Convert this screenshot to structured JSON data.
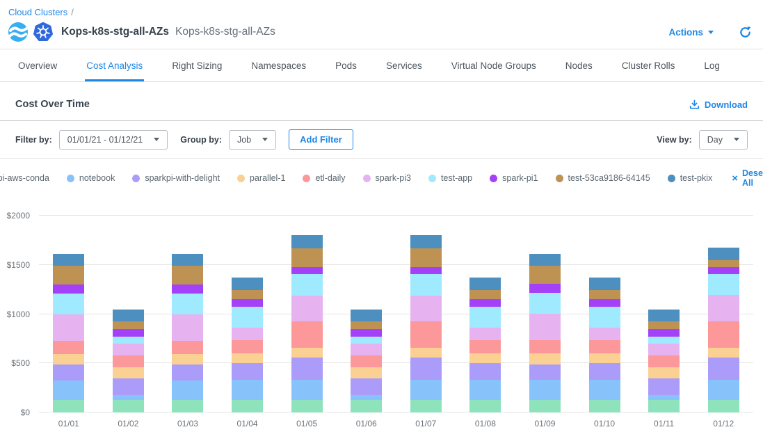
{
  "accent": "#1e87e5",
  "breadcrumb": {
    "link": "Cloud Clusters",
    "separator": "/"
  },
  "header": {
    "title": "Kops-k8s-stg-all-AZs",
    "subtitle": "Kops-k8s-stg-all-AZs",
    "actions_label": "Actions"
  },
  "tabs": {
    "active_index": 1,
    "items": [
      {
        "label": "Overview"
      },
      {
        "label": "Cost Analysis"
      },
      {
        "label": "Right Sizing"
      },
      {
        "label": "Namespaces"
      },
      {
        "label": "Pods"
      },
      {
        "label": "Services"
      },
      {
        "label": "Virtual Node Groups"
      },
      {
        "label": "Nodes"
      },
      {
        "label": "Cluster Rolls"
      },
      {
        "label": "Log"
      }
    ]
  },
  "section": {
    "title": "Cost Over Time",
    "download_label": "Download"
  },
  "filters": {
    "filter_by_label": "Filter by:",
    "date_range": "01/01/21 - 01/12/21",
    "group_by_label": "Group by:",
    "group_by_value": "Job",
    "add_filter_label": "Add Filter",
    "view_by_label": "View by:",
    "view_by_value": "Day"
  },
  "legend": {
    "deselect_all_label": "Deselect All",
    "deselect_icon": "×"
  },
  "chart_data": {
    "type": "bar",
    "stacked": true,
    "grid": true,
    "legend_position": "top",
    "ylabel_prefix": "$",
    "ylim": [
      0,
      2000
    ],
    "yticks": [
      0,
      500,
      1000,
      1500,
      2000
    ],
    "x": [
      "01/01",
      "01/02",
      "01/03",
      "01/04",
      "01/05",
      "01/06",
      "01/07",
      "01/08",
      "01/09",
      "01/10",
      "01/11",
      "01/12"
    ],
    "series": [
      {
        "name": "pi-aws-conda",
        "color": "#8fe3bc",
        "values": [
          125,
          125,
          125,
          130,
          130,
          125,
          130,
          130,
          130,
          130,
          125,
          130
        ]
      },
      {
        "name": "notebook",
        "color": "#87c3fa",
        "values": [
          200,
          55,
          200,
          205,
          200,
          55,
          200,
          205,
          200,
          205,
          55,
          200
        ]
      },
      {
        "name": "sparkpi-with-delight",
        "color": "#ac9cf9",
        "values": [
          160,
          165,
          160,
          165,
          230,
          165,
          230,
          165,
          160,
          165,
          165,
          225
        ]
      },
      {
        "name": "parallel-1",
        "color": "#fad093",
        "values": [
          110,
          115,
          110,
          100,
          100,
          115,
          100,
          100,
          110,
          100,
          115,
          105
        ]
      },
      {
        "name": "etl-daily",
        "color": "#fd989a",
        "values": [
          135,
          120,
          135,
          135,
          265,
          120,
          265,
          135,
          135,
          135,
          120,
          265
        ]
      },
      {
        "name": "spark-pi3",
        "color": "#e7b2f0",
        "values": [
          270,
          120,
          270,
          130,
          265,
          120,
          265,
          130,
          270,
          130,
          120,
          270
        ]
      },
      {
        "name": "test-app",
        "color": "#a0eaff",
        "values": [
          210,
          70,
          210,
          210,
          220,
          70,
          220,
          210,
          210,
          210,
          70,
          215
        ]
      },
      {
        "name": "spark-pi1",
        "color": "#a440f8",
        "values": [
          90,
          75,
          90,
          75,
          65,
          75,
          65,
          75,
          90,
          75,
          75,
          70
        ]
      },
      {
        "name": "test-53ca9186-64145",
        "color": "#be9253",
        "values": [
          190,
          80,
          190,
          95,
          195,
          80,
          195,
          95,
          190,
          95,
          80,
          65
        ]
      },
      {
        "name": "test-pkix",
        "color": "#4d8fbe",
        "values": [
          120,
          120,
          120,
          130,
          130,
          120,
          130,
          130,
          120,
          130,
          120,
          130
        ]
      }
    ]
  }
}
